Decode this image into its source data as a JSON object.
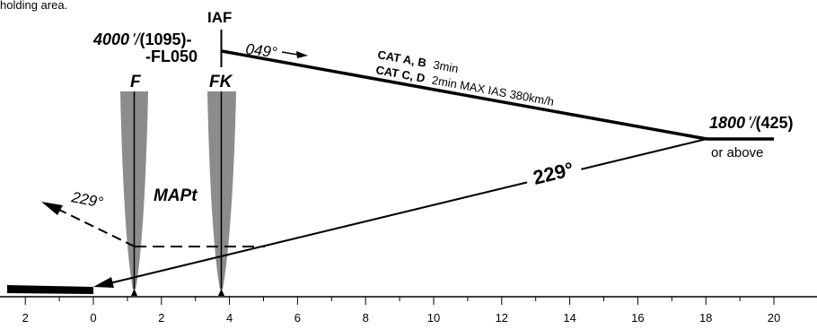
{
  "header_text": "holding area.",
  "fixes": {
    "iaf": "IAF",
    "f": "F",
    "fk": "FK",
    "mapt": "MAPt"
  },
  "altitudes": {
    "iaf_alt_main": "4000",
    "iaf_alt_sep": "'/",
    "iaf_alt_paren": "(1095)-",
    "iaf_fl": "-FL050",
    "turn_alt_main": "1800",
    "turn_alt_sep": "'/",
    "turn_alt_paren": "(425)",
    "turn_alt_note": "or above"
  },
  "tracks": {
    "outbound": "049°",
    "inbound": "229°",
    "missed": "229°"
  },
  "timing": {
    "cat_ab": "CAT A, B",
    "cat_ab_time": "3min",
    "cat_cd": "CAT C, D",
    "cat_cd_time": "2min MAX IAS 380km/h"
  },
  "distance_scale": {
    "unit": "NM",
    "min": -2,
    "max": 20,
    "tick_labels": [
      "2",
      "0",
      "2",
      "4",
      "6",
      "8",
      "10",
      "12",
      "14",
      "16",
      "18",
      "20"
    ]
  },
  "colors": {
    "line": "#000000",
    "fix_cone": "#8c8c8c"
  }
}
